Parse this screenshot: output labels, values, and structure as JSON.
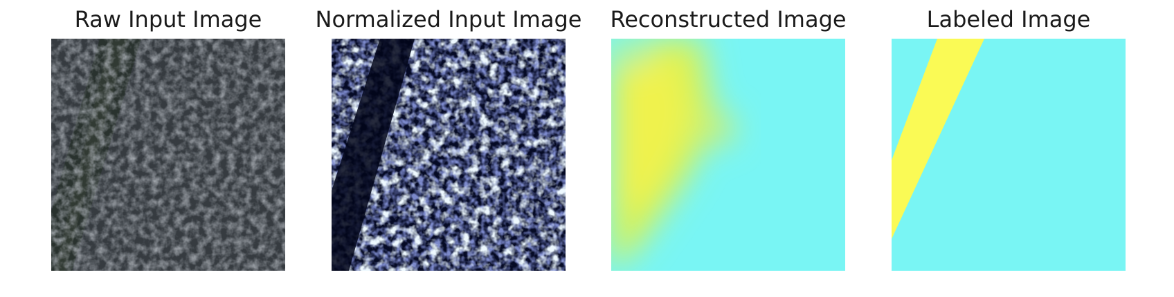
{
  "figure": {
    "panels": [
      {
        "title": "Raw Input Image"
      },
      {
        "title": "Normalized Input Image"
      },
      {
        "title": "Reconstructed Image"
      },
      {
        "title": "Labeled Image"
      }
    ]
  },
  "colors": {
    "background": "#ffffff",
    "title_text": "#1a1a1a",
    "raw_base": "#3a3f44",
    "normalized_base": "#0a0f2e",
    "cyan": "#79f5f4",
    "yellow": "#f4f45a",
    "yellow_green": "#cdf05e",
    "label_yellow": "#fafa55"
  }
}
